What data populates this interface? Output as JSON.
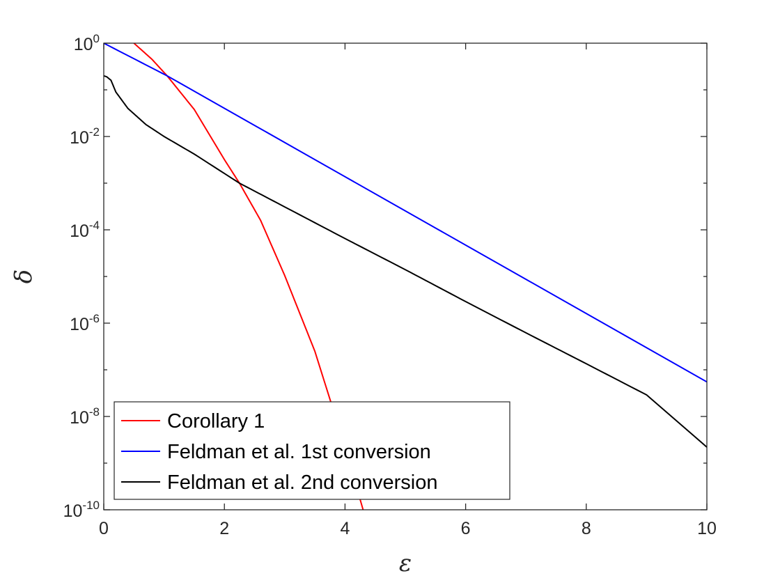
{
  "chart_data": {
    "type": "line",
    "title": "",
    "xlabel": "ε",
    "ylabel": "δ",
    "x_scale": "linear",
    "y_scale": "log",
    "xlim": [
      0,
      10
    ],
    "ylim": [
      1e-10,
      1
    ],
    "x_ticks": [
      0,
      2,
      4,
      6,
      8,
      10
    ],
    "x_tick_labels": [
      "0",
      "2",
      "4",
      "6",
      "8",
      "10"
    ],
    "y_ticks": [
      1e-10,
      1e-08,
      1e-06,
      0.0001,
      0.01,
      1
    ],
    "y_tick_labels": [
      {
        "base": "10",
        "exp": "-10"
      },
      {
        "base": "10",
        "exp": "-8"
      },
      {
        "base": "10",
        "exp": "-6"
      },
      {
        "base": "10",
        "exp": "-4"
      },
      {
        "base": "10",
        "exp": "-2"
      },
      {
        "base": "10",
        "exp": "0"
      }
    ],
    "grid": false,
    "legend_position": "bottom-left",
    "series": [
      {
        "name": "Corollary 1",
        "color": "#ff0000",
        "x": [
          0.5,
          0.8,
          1.05,
          1.5,
          2.0,
          2.25,
          2.6,
          3.0,
          3.5,
          4.0,
          4.3
        ],
        "y": [
          1.0,
          0.45,
          0.2,
          0.038,
          0.0032,
          0.001,
          0.00016,
          1.05e-05,
          2.5e-07,
          2.2e-09,
          1e-10
        ]
      },
      {
        "name": "Feldman et al. 1st conversion",
        "color": "#0000ff",
        "x": [
          0,
          1.05,
          10
        ],
        "y": [
          1.0,
          0.2,
          5.5e-08
        ]
      },
      {
        "name": "Feldman et al. 2nd conversion",
        "color": "#000000",
        "x": [
          0,
          0.05,
          0.12,
          0.2,
          0.4,
          0.7,
          1.0,
          1.5,
          2.25,
          3.0,
          4.0,
          5.0,
          6.0,
          7.0,
          8.0,
          9.0,
          10.0
        ],
        "y": [
          0.2,
          0.19,
          0.16,
          0.09,
          0.04,
          0.018,
          0.01,
          0.0042,
          0.001,
          0.00031,
          6.5e-05,
          1.4e-05,
          2.9e-06,
          6.2e-07,
          1.35e-07,
          2.9e-08,
          2.2e-09
        ]
      }
    ]
  }
}
